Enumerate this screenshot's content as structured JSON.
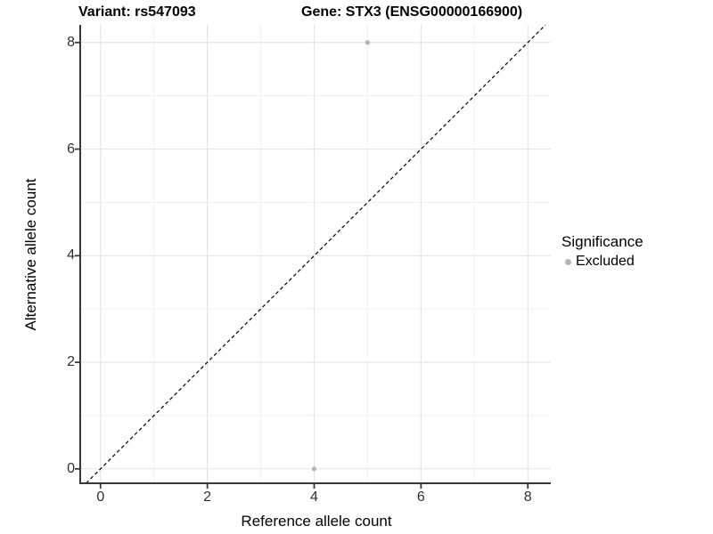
{
  "titles": {
    "variant": "Variant: rs547093",
    "gene": "Gene: STX3 (ENSG00000166900)"
  },
  "axes": {
    "x": {
      "label": "Reference allele count",
      "ticks": [
        "0",
        "2",
        "4",
        "6",
        "8"
      ]
    },
    "y": {
      "label": "Alternative allele count",
      "ticks": [
        "0",
        "2",
        "4",
        "6",
        "8"
      ]
    }
  },
  "legend": {
    "title": "Significance",
    "items": [
      {
        "label": "Excluded",
        "color": "#b4b4b4"
      }
    ]
  },
  "colors": {
    "background": "#ffffff",
    "grid_major": "#e6e6e6",
    "grid_minor": "#f1f1f1",
    "axis_line": "#383838",
    "reference_line": "#000000",
    "point": "#b4b4b4"
  },
  "chart_data": {
    "type": "scatter",
    "title": "Variant: rs547093 | Gene: STX3 (ENSG00000166900)",
    "xlabel": "Reference allele count",
    "ylabel": "Alternative allele count",
    "xlim": [
      -0.38,
      8.43
    ],
    "ylim": [
      -0.27,
      8.33
    ],
    "x_ticks": [
      0,
      2,
      4,
      6,
      8
    ],
    "y_ticks": [
      0,
      2,
      4,
      6,
      8
    ],
    "x_minor_ticks": [
      1,
      3,
      5,
      7
    ],
    "y_minor_ticks": [
      1,
      3,
      5,
      7
    ],
    "grid": "major+minor",
    "legend_position": "right",
    "series": [
      {
        "name": "Excluded",
        "color": "#b4b4b4",
        "points": [
          {
            "x": 5,
            "y": 8
          },
          {
            "x": 4,
            "y": 0
          }
        ]
      }
    ],
    "reference_line": {
      "slope": 1,
      "intercept": 0,
      "style": "dashed",
      "color": "#000000"
    }
  }
}
